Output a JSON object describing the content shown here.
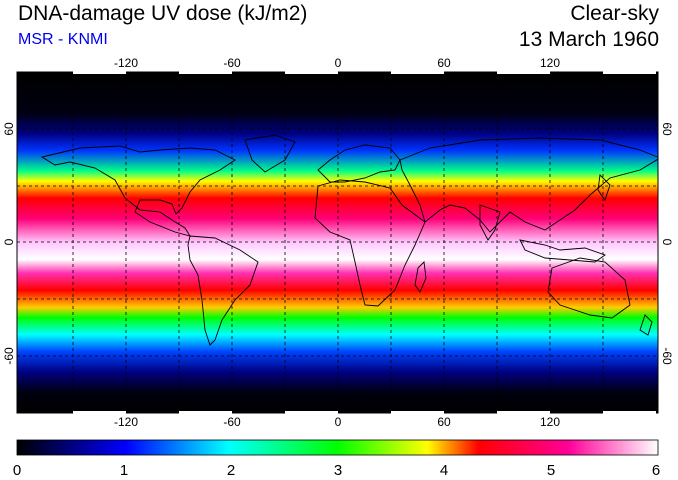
{
  "header": {
    "title": "DNA-damage UV dose (kJ/m2)",
    "subtitle": "MSR - KNMI",
    "condition": "Clear-sky",
    "date": "13 March 1960"
  },
  "map": {
    "projection": "equirectangular",
    "lon_range": [
      -180,
      180
    ],
    "lat_range": [
      -90,
      90
    ],
    "top_tick_labels": [
      "-120",
      "-60",
      "0",
      "60",
      "120"
    ],
    "bottom_tick_labels": [
      "-120",
      "-60",
      "0",
      "60",
      "120"
    ],
    "left_tick_labels": [
      "60",
      "0",
      "-60"
    ],
    "right_tick_labels": [
      "60",
      "0",
      "-60"
    ],
    "gridlines": "dashed, every 30 degrees",
    "coastlines": "black outline"
  },
  "colorbar": {
    "min": 0,
    "max": 6,
    "labels": [
      "0",
      "1",
      "2",
      "3",
      "4",
      "5",
      "6"
    ],
    "colors": [
      "#000000",
      "#0000ff",
      "#00ffff",
      "#00ff00",
      "#ffff00",
      "#ff0000",
      "#ff00aa",
      "#ffffff"
    ]
  }
}
